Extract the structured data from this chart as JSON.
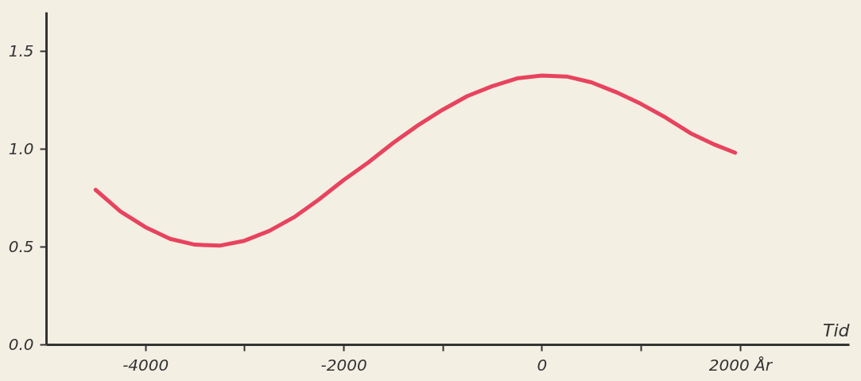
{
  "chart_data": {
    "type": "line",
    "xlabel": "Tid",
    "x": [
      -4500,
      -4250,
      -4000,
      -3750,
      -3500,
      -3250,
      -3000,
      -2750,
      -2500,
      -2250,
      -2000,
      -1750,
      -1500,
      -1250,
      -1000,
      -750,
      -500,
      -250,
      0,
      250,
      500,
      750,
      1000,
      1250,
      1500,
      1750,
      1950
    ],
    "series": [
      {
        "color": "#e8435e",
        "values": [
          0.79,
          0.68,
          0.6,
          0.54,
          0.51,
          0.505,
          0.53,
          0.58,
          0.65,
          0.74,
          0.84,
          0.93,
          1.03,
          1.12,
          1.2,
          1.27,
          1.32,
          1.36,
          1.375,
          1.37,
          1.34,
          1.29,
          1.23,
          1.16,
          1.08,
          1.02,
          0.98
        ]
      }
    ],
    "xlim": [
      -5000,
      3100
    ],
    "ylim": [
      0,
      1.7
    ],
    "xticks": [
      {
        "value": -4000,
        "label": "-4000"
      },
      {
        "value": -3000,
        "label": null
      },
      {
        "value": -2000,
        "label": "-2000"
      },
      {
        "value": -1000,
        "label": null
      },
      {
        "value": 0,
        "label": "0"
      },
      {
        "value": 1000,
        "label": null
      },
      {
        "value": 2000,
        "label": "2000 År"
      }
    ],
    "yticks": [
      {
        "value": 0,
        "label": "0.0"
      },
      {
        "value": 0.5,
        "label": "0.5"
      },
      {
        "value": 1.0,
        "label": "1.0"
      },
      {
        "value": 1.5,
        "label": "1.5"
      }
    ],
    "grid": false,
    "line_style": "solid",
    "marker": "none"
  }
}
